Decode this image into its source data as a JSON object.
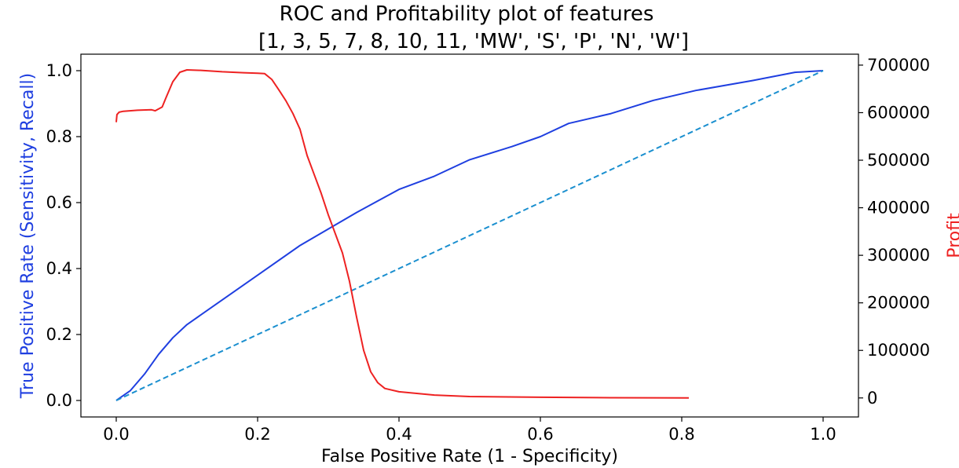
{
  "chart_data": {
    "type": "line",
    "title_lines": [
      "ROC and Profitability plot of features",
      "[1, 3, 5, 7, 8, 10, 11, 'MW', 'S', 'P', 'N', 'W']"
    ],
    "xlabel": "False Positive Rate (1 - Specificity)",
    "ylabel": "True Positive Rate (Sensitivity, Recall)",
    "y2label": "Profit",
    "xlim": [
      -0.05,
      1.05
    ],
    "ylim": [
      -0.05,
      1.05
    ],
    "y2lim": [
      -40000,
      723000
    ],
    "x_ticks": [
      0.0,
      0.2,
      0.4,
      0.6,
      0.8,
      1.0
    ],
    "x_tick_labels": [
      "0.0",
      "0.2",
      "0.4",
      "0.6",
      "0.8",
      "1.0"
    ],
    "y_ticks": [
      0.0,
      0.2,
      0.4,
      0.6,
      0.8,
      1.0
    ],
    "y_tick_labels": [
      "0.0",
      "0.2",
      "0.4",
      "0.6",
      "0.8",
      "1.0"
    ],
    "y2_ticks": [
      0,
      100000,
      200000,
      300000,
      400000,
      500000,
      600000,
      700000
    ],
    "y2_tick_labels": [
      "0",
      "100000",
      "200000",
      "300000",
      "400000",
      "500000",
      "600000",
      "700000"
    ],
    "grid": false,
    "series": [
      {
        "axis": "left",
        "color": "#1f3fe0",
        "style": "solid",
        "x": [
          0.0,
          0.02,
          0.04,
          0.06,
          0.08,
          0.1,
          0.14,
          0.2,
          0.26,
          0.3,
          0.34,
          0.4,
          0.45,
          0.5,
          0.56,
          0.6,
          0.64,
          0.7,
          0.76,
          0.82,
          0.9,
          0.96,
          1.0
        ],
        "values": [
          0.0,
          0.03,
          0.08,
          0.14,
          0.19,
          0.23,
          0.29,
          0.38,
          0.47,
          0.52,
          0.57,
          0.64,
          0.68,
          0.73,
          0.77,
          0.8,
          0.84,
          0.87,
          0.91,
          0.94,
          0.97,
          0.995,
          1.0
        ]
      },
      {
        "axis": "left",
        "color": "#1a8fcf",
        "style": "dashed",
        "x": [
          0.0,
          1.0
        ],
        "values": [
          0.0,
          1.0
        ]
      },
      {
        "axis": "right",
        "color": "#ee2222",
        "style": "solid",
        "x": [
          0.0,
          0.001,
          0.004,
          0.01,
          0.03,
          0.05,
          0.055,
          0.065,
          0.07,
          0.08,
          0.09,
          0.1,
          0.12,
          0.15,
          0.18,
          0.2,
          0.21,
          0.22,
          0.23,
          0.24,
          0.25,
          0.26,
          0.27,
          0.28,
          0.29,
          0.3,
          0.31,
          0.32,
          0.33,
          0.34,
          0.35,
          0.36,
          0.37,
          0.38,
          0.4,
          0.45,
          0.5,
          0.6,
          0.7,
          0.81
        ],
        "values": [
          580000,
          596000,
          601000,
          603000,
          605000,
          606000,
          604000,
          612000,
          630000,
          665000,
          685000,
          690000,
          689000,
          686000,
          684000,
          683000,
          682000,
          670000,
          648000,
          625000,
          598000,
          565000,
          510000,
          470000,
          430000,
          385000,
          345000,
          305000,
          245000,
          170000,
          100000,
          55000,
          32000,
          20000,
          13000,
          6000,
          3000,
          1500,
          500,
          0
        ]
      }
    ]
  }
}
